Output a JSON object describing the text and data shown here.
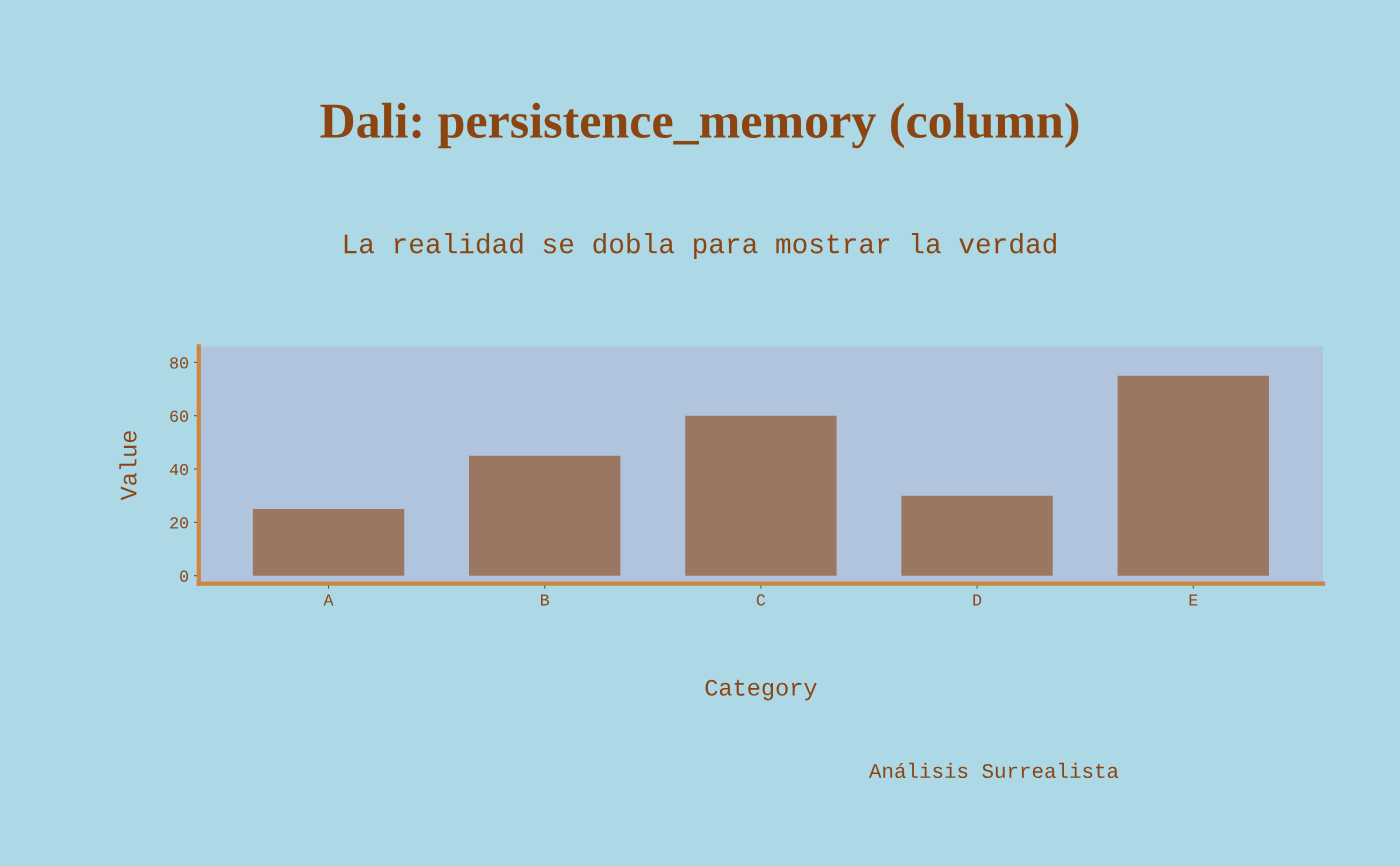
{
  "chart_data": {
    "type": "bar",
    "title": "Dali: persistence_memory (column)",
    "subtitle": "La realidad se dobla para mostrar la verdad",
    "xlabel": "Category",
    "ylabel": "Value",
    "categories": [
      "A",
      "B",
      "C",
      "D",
      "E"
    ],
    "values": [
      25,
      45,
      60,
      30,
      75
    ],
    "color": "#9b7762",
    "ylim": [
      -3,
      86
    ],
    "yticks": [
      0,
      20,
      40,
      60,
      80
    ],
    "grid": false,
    "legend": false,
    "annotations": [
      "Análisis Surrealista"
    ]
  }
}
